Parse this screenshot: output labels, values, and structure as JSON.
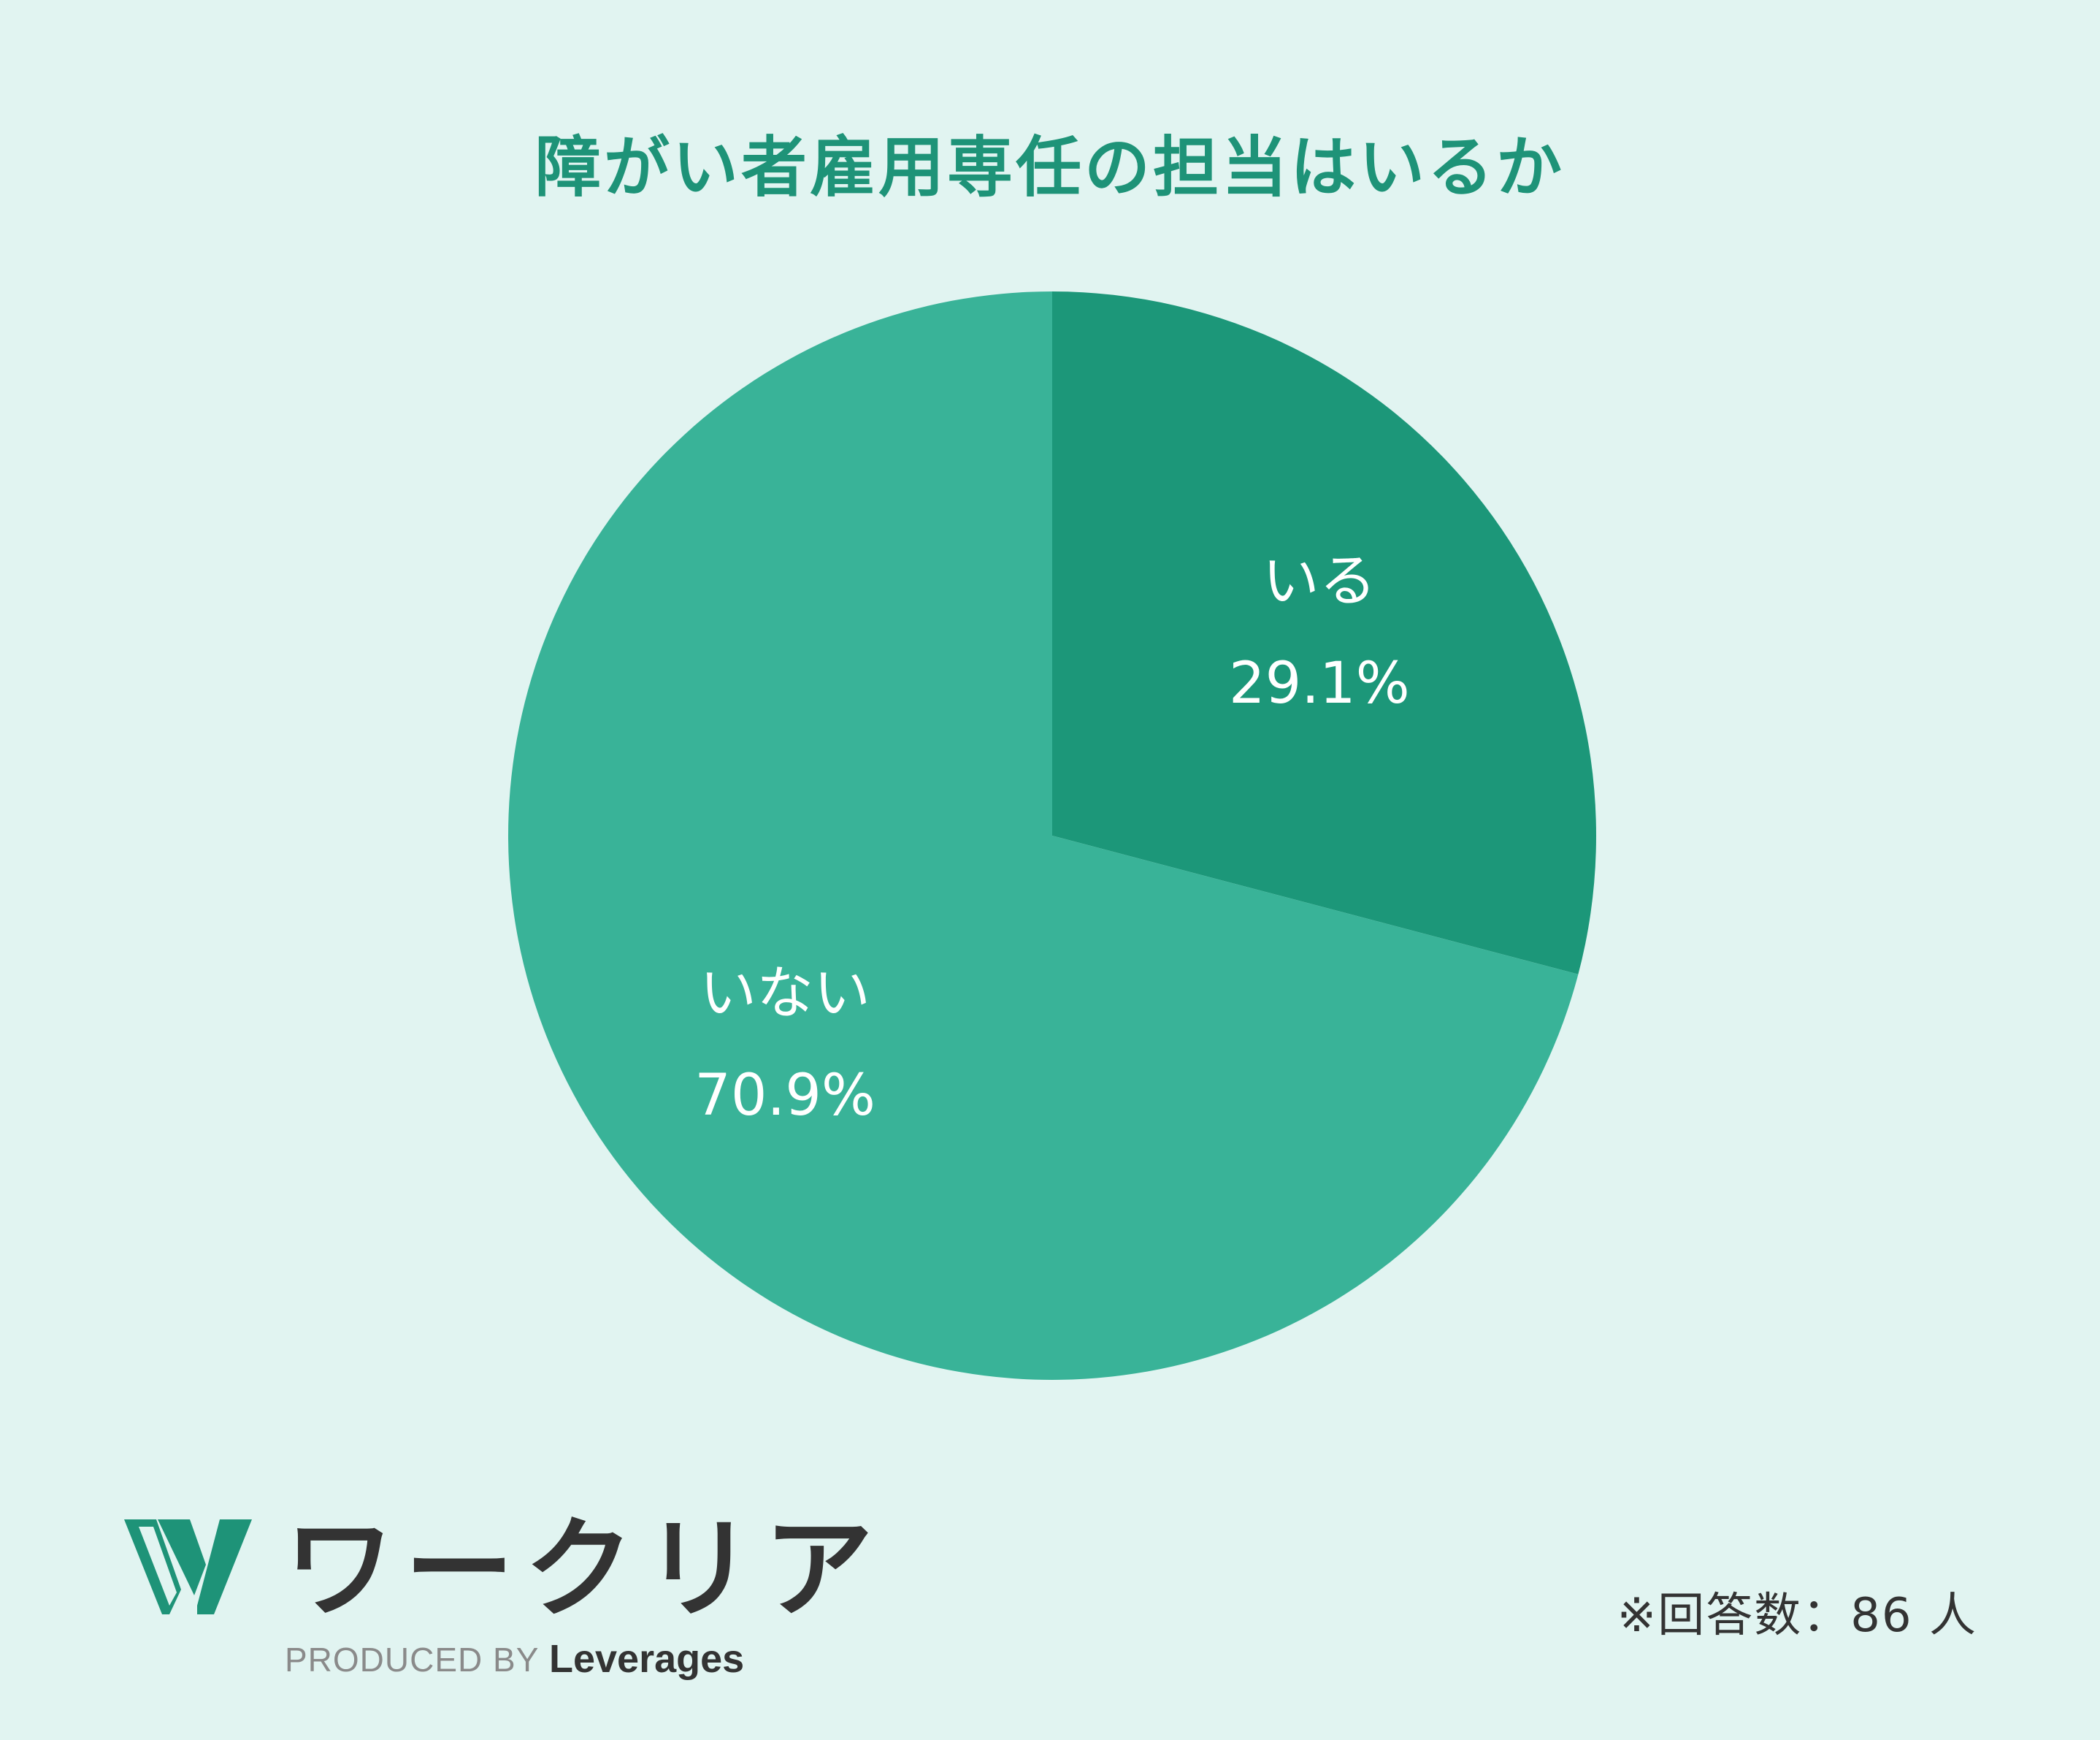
{
  "colors": {
    "background": "#e1f4f1",
    "title": "#1e9378",
    "slice_iru": "#1c9779",
    "slice_inai": "#39b398",
    "label": "#ffffff"
  },
  "chart_data": {
    "type": "pie",
    "title": "障がい者雇用専任の担当はいるか",
    "slices": [
      {
        "label": "いる",
        "value": 29.1,
        "value_label": "29.1%",
        "color": "#1c9779"
      },
      {
        "label": "いない",
        "value": 70.9,
        "value_label": "70.9%",
        "color": "#39b398"
      }
    ],
    "start_angle": "12 o'clock",
    "direction": "clockwise"
  },
  "footer": {
    "note": "※回答数：86 人"
  },
  "logo": {
    "name": "ワークリア",
    "produced_by": "PRODUCED BY",
    "brand": "Leverages"
  }
}
